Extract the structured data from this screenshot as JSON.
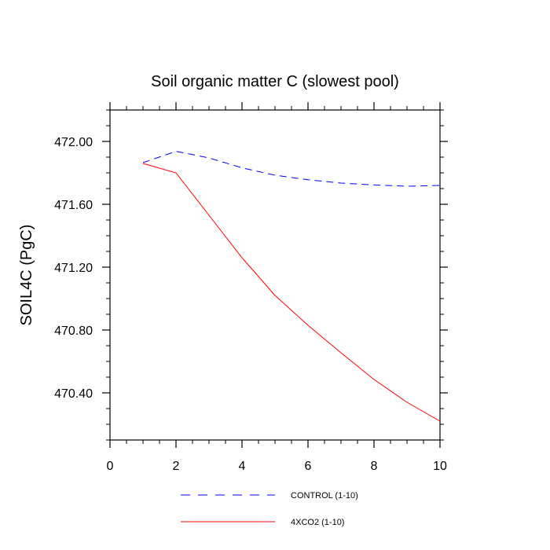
{
  "chart_data": {
    "type": "line",
    "title": "Soil organic matter C (slowest pool)",
    "xlabel": "",
    "ylabel": "SOIL4C  (PgC)",
    "xlim": [
      0,
      10
    ],
    "ylim": [
      470.1,
      472.2
    ],
    "x_ticks": [
      0,
      2,
      4,
      6,
      8,
      10
    ],
    "x_tick_labels": [
      "0",
      "2",
      "4",
      "6",
      "8",
      "10"
    ],
    "y_ticks": [
      470.4,
      470.8,
      471.2,
      471.6,
      472.0
    ],
    "y_tick_labels": [
      "470.40",
      "470.80",
      "471.20",
      "471.60",
      "472.00"
    ],
    "grid": false,
    "legend_position": "bottom",
    "series": [
      {
        "name": "CONTROL (1-10)",
        "color": "#0000ff",
        "dash": "dashed",
        "x": [
          1,
          2,
          3,
          4,
          5,
          6,
          7,
          8,
          9,
          10
        ],
        "y": [
          471.865,
          471.937,
          471.895,
          471.832,
          471.785,
          471.756,
          471.735,
          471.723,
          471.715,
          471.72
        ]
      },
      {
        "name": "4XCO2 (1-10)",
        "color": "#ff0000",
        "dash": "solid",
        "x": [
          1,
          2,
          3,
          4,
          5,
          6,
          7,
          8,
          9,
          10
        ],
        "y": [
          471.86,
          471.8,
          471.53,
          471.26,
          471.02,
          470.83,
          470.655,
          470.485,
          470.34,
          470.22
        ]
      }
    ]
  }
}
